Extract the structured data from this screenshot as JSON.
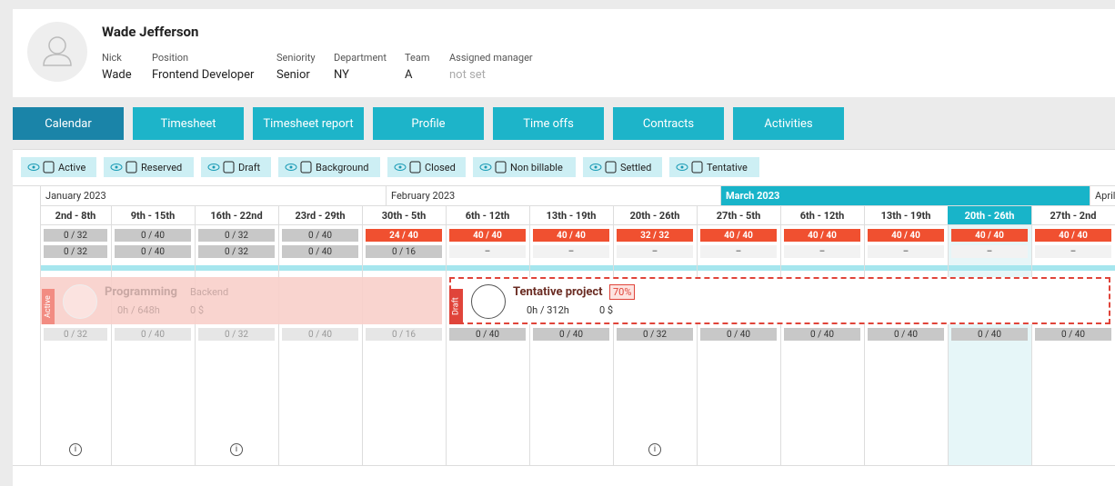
{
  "profile": {
    "name": "Wade Jefferson",
    "fields": [
      {
        "label": "Nick",
        "value": "Wade"
      },
      {
        "label": "Position",
        "value": "Frontend Developer"
      },
      {
        "label": "Seniority",
        "value": "Senior"
      },
      {
        "label": "Department",
        "value": "NY"
      },
      {
        "label": "Team",
        "value": "A"
      },
      {
        "label": "Assigned manager",
        "value": "not set"
      }
    ]
  },
  "tabs": [
    "Calendar",
    "Timesheet",
    "Timesheet report",
    "Profile",
    "Time offs",
    "Contracts",
    "Activities"
  ],
  "legend": [
    "Active",
    "Reserved",
    "Draft",
    "Background",
    "Closed",
    "Non billable",
    "Settled",
    "Tentative"
  ],
  "months": [
    "January 2023",
    "February 2023",
    "March 2023",
    "April"
  ],
  "weeks": [
    {
      "label": "2nd - 8th",
      "row1": "0 / 32",
      "row2": "0 / 32",
      "row3": "0 / 32"
    },
    {
      "label": "9th - 15th",
      "row1": "0 / 40",
      "row2": "0 / 40",
      "row3": "0 / 40"
    },
    {
      "label": "16th - 22nd",
      "row1": "0 / 32",
      "row2": "0 / 32",
      "row3": "0 / 32"
    },
    {
      "label": "23rd - 29th",
      "row1": "0 / 40",
      "row2": "0 / 40",
      "row3": "0 / 40"
    },
    {
      "label": "30th - 5th",
      "row1": "24 / 40",
      "row2": "0 / 16",
      "row3": "0 / 16"
    },
    {
      "label": "6th - 12th",
      "row1": "40 / 40",
      "row2": "–",
      "row3": "0 / 40"
    },
    {
      "label": "13th - 19th",
      "row1": "40 / 40",
      "row2": "–",
      "row3": "0 / 40"
    },
    {
      "label": "20th - 26th",
      "row1": "32 / 32",
      "row2": "–",
      "row3": "0 / 32"
    },
    {
      "label": "27th - 5th",
      "row1": "40 / 40",
      "row2": "–",
      "row3": "0 / 40"
    },
    {
      "label": "6th - 12th",
      "row1": "40 / 40",
      "row2": "–",
      "row3": "0 / 40"
    },
    {
      "label": "13th - 19th",
      "row1": "40 / 40",
      "row2": "–",
      "row3": "0 / 40"
    },
    {
      "label": "20th - 26th",
      "row1": "40 / 40",
      "row2": "–",
      "row3": "0 / 40"
    },
    {
      "label": "27th - 2nd",
      "row1": "40 / 40",
      "row2": "–",
      "row3": "0 / 40"
    }
  ],
  "projects": [
    {
      "status": "Active",
      "name": "Programming",
      "tag": "Backend",
      "hours": "0h / 648h",
      "money": "0 $"
    },
    {
      "status": "Draft",
      "name": "Tentative project",
      "percent": "70%",
      "hours": "0h / 312h",
      "money": "0 $"
    }
  ]
}
